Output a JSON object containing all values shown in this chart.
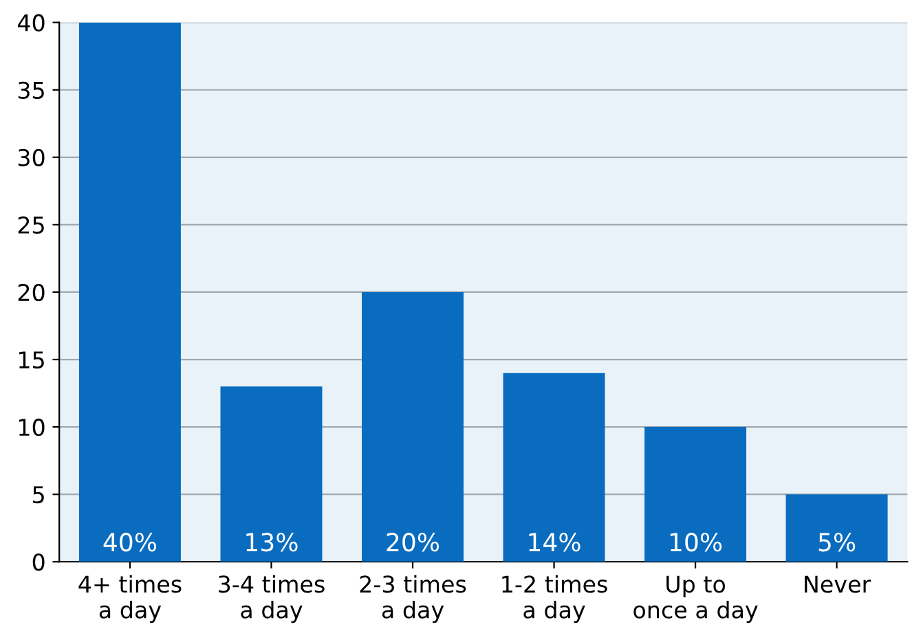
{
  "chart_data": {
    "type": "bar",
    "categories": [
      "4+ times\na day",
      "3-4 times\na day",
      "2-3 times\na day",
      "1-2 times\na day",
      "Up to\nonce a day",
      "Never"
    ],
    "values": [
      40,
      13,
      20,
      14,
      10,
      5
    ],
    "value_labels": [
      "40%",
      "13%",
      "20%",
      "14%",
      "10%",
      "5%"
    ],
    "color": "#0a6cbf",
    "ylim": [
      0,
      40
    ],
    "yticks": [
      0,
      5,
      10,
      15,
      20,
      25,
      30,
      35,
      40
    ],
    "grid": "y"
  }
}
